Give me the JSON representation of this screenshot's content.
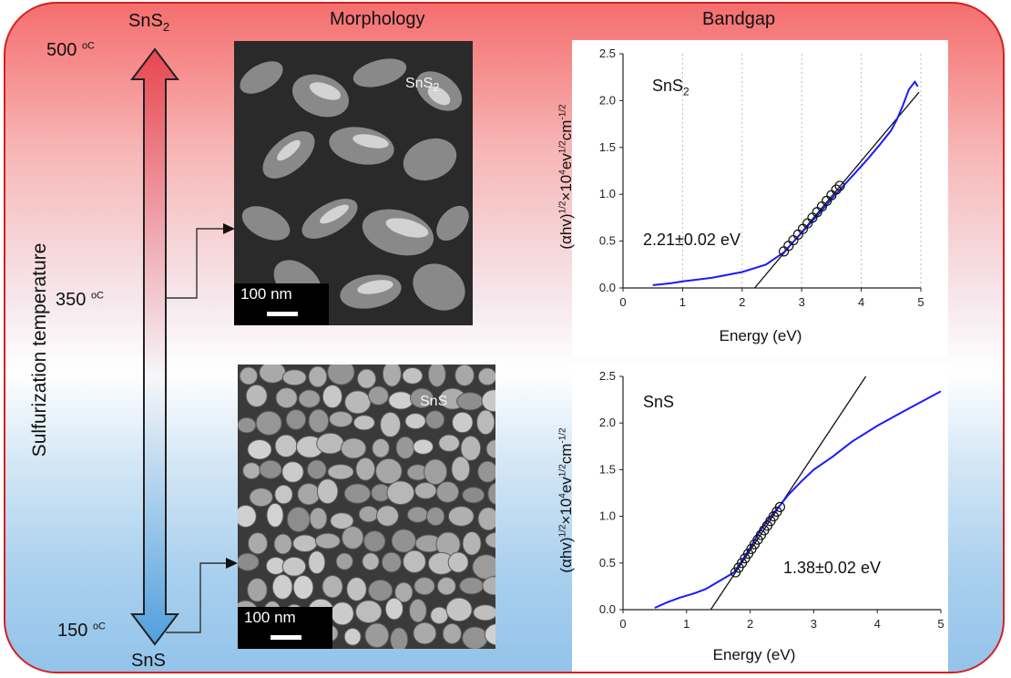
{
  "headers": {
    "morphology": "Morphology",
    "bandgap": "Bandgap"
  },
  "axis_label": "Sulfurization temperature",
  "temperatures": [
    {
      "value": "500",
      "unit": "oC"
    },
    {
      "value": "350",
      "unit": "oC"
    },
    {
      "value": "150",
      "unit": "oC"
    }
  ],
  "materials": {
    "top": {
      "base": "SnS",
      "sub": "2"
    },
    "bottom": "SnS"
  },
  "sem_images": [
    {
      "label_base": "SnS",
      "label_sub": "2",
      "scale_bar": "100 nm"
    },
    {
      "label_base": "SnS",
      "label_sub": "",
      "scale_bar": "100 nm"
    }
  ],
  "colors": {
    "frame": "#d42020",
    "gradient_top": "#f56e6e",
    "gradient_bottom": "#93c3ea",
    "curve": "#1a1aff",
    "fit_line": "#111111"
  },
  "chart_data": [
    {
      "type": "line",
      "title": "SnS2",
      "title_base": "SnS",
      "title_sub": "2",
      "xlabel": "Energy (eV)",
      "ylabel": "(αhv)1/2×104ev1/2cm-1/2",
      "xlim": [
        0,
        5
      ],
      "ylim": [
        0,
        2.5
      ],
      "x_ticks": [
        "0",
        "1",
        "2",
        "3",
        "4",
        "5"
      ],
      "y_ticks": [
        "0.0",
        "0.5",
        "1.0",
        "1.5",
        "2.0",
        "2.5"
      ],
      "grid": "vertical-dotted",
      "annotation": "2.21±0.02 eV",
      "curve": {
        "x": [
          0.5,
          0.8,
          1.0,
          1.5,
          2.0,
          2.4,
          2.7,
          2.9,
          3.1,
          3.3,
          3.5,
          3.7,
          3.9,
          4.1,
          4.3,
          4.5,
          4.6,
          4.7,
          4.8,
          4.9,
          4.95
        ],
        "y": [
          0.03,
          0.05,
          0.07,
          0.11,
          0.17,
          0.25,
          0.38,
          0.52,
          0.66,
          0.8,
          0.95,
          1.09,
          1.23,
          1.37,
          1.52,
          1.68,
          1.8,
          1.95,
          2.12,
          2.2,
          2.15
        ]
      },
      "fit_line": {
        "x": [
          2.21,
          4.97
        ],
        "y": [
          0,
          2.09
        ]
      },
      "markers": {
        "x": [
          2.7,
          2.78,
          2.86,
          2.94,
          3.02,
          3.1,
          3.18,
          3.26,
          3.34,
          3.42,
          3.5,
          3.58,
          3.64
        ],
        "y": [
          0.39,
          0.45,
          0.51,
          0.57,
          0.63,
          0.69,
          0.75,
          0.81,
          0.87,
          0.93,
          0.99,
          1.05,
          1.09
        ]
      }
    },
    {
      "type": "line",
      "title": "SnS",
      "xlabel": "Energy (eV)",
      "ylabel": "(αhv)1/2×104ev1/2cm-1/2",
      "xlim": [
        0,
        5
      ],
      "ylim": [
        0,
        2.5
      ],
      "x_ticks": [
        "0",
        "1",
        "2",
        "3",
        "4",
        "5"
      ],
      "y_ticks": [
        "0.0",
        "0.5",
        "1.0",
        "1.5",
        "2.0",
        "2.5"
      ],
      "grid": "none",
      "annotation": "1.38±0.02 eV",
      "curve": {
        "x": [
          0.5,
          0.7,
          0.9,
          1.1,
          1.3,
          1.5,
          1.65,
          1.75,
          1.85,
          2.0,
          2.15,
          2.3,
          2.45,
          2.6,
          2.8,
          3.0,
          3.3,
          3.6,
          4.0,
          4.4,
          4.7,
          5.0
        ],
        "y": [
          0.02,
          0.08,
          0.13,
          0.17,
          0.22,
          0.3,
          0.36,
          0.4,
          0.5,
          0.66,
          0.84,
          0.98,
          1.1,
          1.23,
          1.37,
          1.5,
          1.64,
          1.8,
          1.97,
          2.12,
          2.23,
          2.34
        ]
      },
      "fit_line": {
        "x": [
          1.38,
          3.82
        ],
        "y": [
          0,
          2.5
        ]
      },
      "markers": {
        "x": [
          1.77,
          1.82,
          1.87,
          1.92,
          1.97,
          2.02,
          2.07,
          2.12,
          2.17,
          2.22,
          2.27,
          2.32,
          2.37,
          2.42,
          2.47
        ],
        "y": [
          0.4,
          0.45,
          0.5,
          0.55,
          0.6,
          0.65,
          0.7,
          0.75,
          0.8,
          0.85,
          0.9,
          0.95,
          1.0,
          1.05,
          1.1
        ]
      }
    }
  ]
}
